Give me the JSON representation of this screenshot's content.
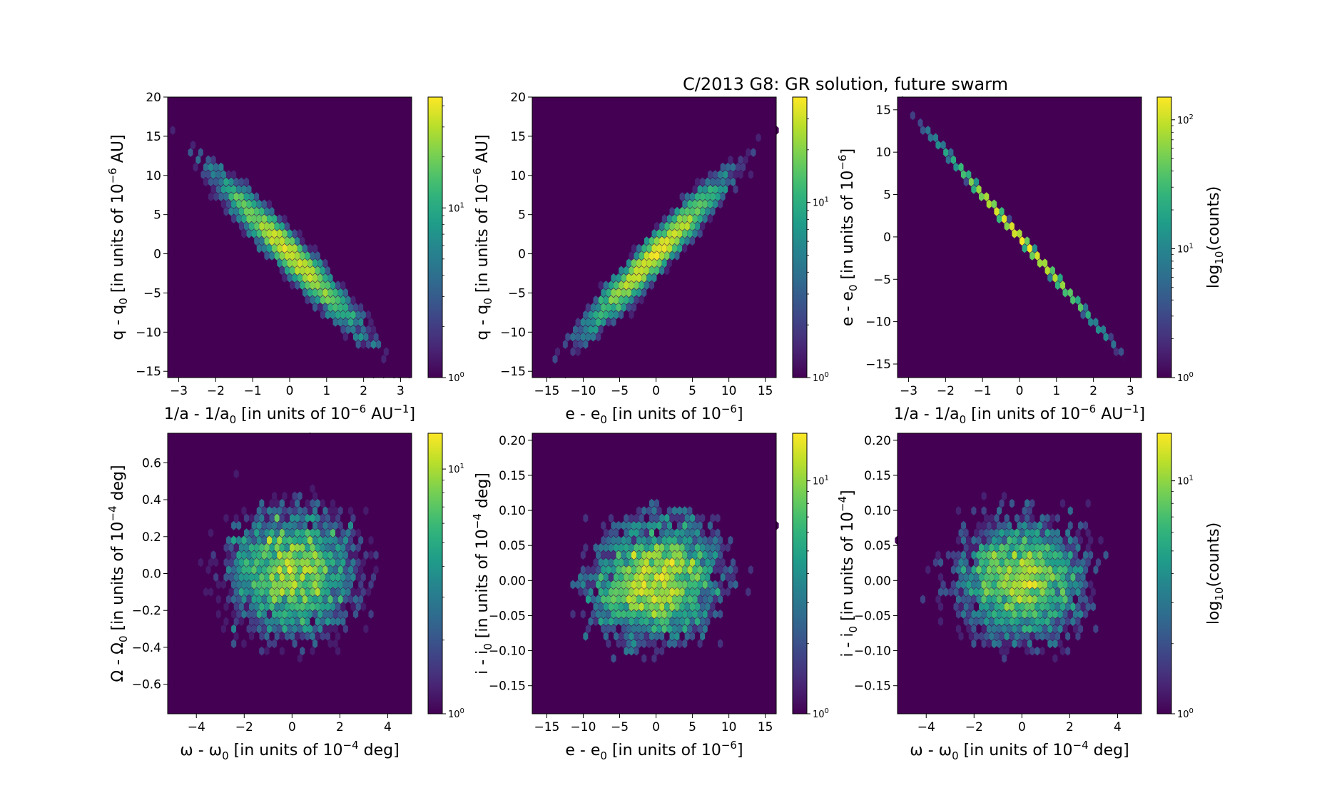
{
  "figure": {
    "title": "C/2013 G8:  GR solution, future swarm",
    "colormap": "viridis",
    "background_color": "#440154",
    "colorbar_log_label": "counts"
  },
  "chart_data": [
    {
      "type": "hexbin",
      "id": "a",
      "xlabel": "1/a - 1/a0 [in units of 10^-6 AU^-1]",
      "ylabel": "q - q0 [in units of 10^-6 AU]",
      "xlim": [
        -3.3,
        3.3
      ],
      "ylim": [
        -15.8,
        20
      ],
      "xticks": [
        -3,
        -2,
        -1,
        0,
        1,
        2,
        3
      ],
      "yticks": [
        -15,
        -10,
        -5,
        0,
        5,
        10,
        15,
        20
      ],
      "colorbar": {
        "min": 1,
        "max": 45,
        "ticks": [
          "10^0",
          "10^1"
        ],
        "label": ""
      },
      "distribution": {
        "x_center": 0,
        "x_sigma": 1.0,
        "y_slope": -4.9,
        "y_sigma": 1.4,
        "peak_counts": 40,
        "n_points": 5000
      }
    },
    {
      "type": "hexbin",
      "id": "b",
      "xlabel": "e - e0 [in units of 10^-6]",
      "ylabel": "q - q0 [in units of 10^-6 AU]",
      "xlim": [
        -17,
        16.5
      ],
      "ylim": [
        -15.8,
        20
      ],
      "xticks": [
        -15,
        -10,
        -5,
        0,
        5,
        10,
        15
      ],
      "yticks": [
        -15,
        -10,
        -5,
        0,
        5,
        10,
        15,
        20
      ],
      "colorbar": {
        "min": 1,
        "max": 40,
        "ticks": [
          "10^0",
          "10^1"
        ],
        "label": ""
      },
      "distribution": {
        "x_center": 0,
        "x_sigma": 5.0,
        "y_slope": 0.98,
        "y_sigma": 1.4,
        "peak_counts": 38,
        "n_points": 5000
      }
    },
    {
      "type": "hexbin",
      "id": "c",
      "xlabel": "1/a - 1/a0 [in units of 10^-6 AU^-1]",
      "ylabel": "e - e0 [in units of 10^-6]",
      "xlim": [
        -3.3,
        3.3
      ],
      "ylim": [
        -16.6,
        16.5
      ],
      "xticks": [
        -3,
        -2,
        -1,
        0,
        1,
        2,
        3
      ],
      "yticks": [
        -15,
        -10,
        -5,
        0,
        5,
        10,
        15
      ],
      "colorbar": {
        "min": 1,
        "max": 150,
        "ticks": [
          "10^0",
          "10^1",
          "10^2"
        ],
        "label": "log10(counts)"
      },
      "distribution": {
        "x_center": 0,
        "x_sigma": 1.0,
        "y_slope": -5.0,
        "y_sigma": 0,
        "peak_counts": 140,
        "n_points": 5000
      }
    },
    {
      "type": "hexbin",
      "id": "d",
      "xlabel": "ω - ω0 [in units of 10^-4 deg]",
      "ylabel": "Ω - Ω0 [in units of 10^-4 deg]",
      "xlim": [
        -5.2,
        5.0
      ],
      "ylim": [
        -0.76,
        0.76
      ],
      "xticks": [
        -4,
        -2,
        0,
        2,
        4
      ],
      "yticks": [
        -0.6,
        -0.4,
        -0.2,
        0.0,
        0.2,
        0.4,
        0.6
      ],
      "colorbar": {
        "min": 1,
        "max": 14,
        "ticks": [
          "10^0",
          "10^1"
        ],
        "label": ""
      },
      "distribution": {
        "x_center": 0,
        "x_sigma": 1.5,
        "y_slope": 0,
        "y_sigma": 0.2,
        "peak_counts": 13,
        "n_points": 5000
      }
    },
    {
      "type": "hexbin",
      "id": "e",
      "xlabel": "e - e0 [in units of 10^-6]",
      "ylabel": "i - i0 [in units of 10^-4 deg]",
      "xlim": [
        -17,
        16.5
      ],
      "ylim": [
        -0.19,
        0.21
      ],
      "xticks": [
        -15,
        -10,
        -5,
        0,
        5,
        10,
        15
      ],
      "yticks": [
        -0.15,
        -0.1,
        -0.05,
        0.0,
        0.05,
        0.1,
        0.15,
        0.2
      ],
      "colorbar": {
        "min": 1,
        "max": 16,
        "ticks": [
          "10^0",
          "10^1"
        ],
        "label": ""
      },
      "distribution": {
        "x_center": 0,
        "x_sigma": 5.0,
        "y_slope": 0.0012,
        "y_sigma": 0.048,
        "peak_counts": 15,
        "n_points": 5000
      }
    },
    {
      "type": "hexbin",
      "id": "f",
      "xlabel": "ω - ω0 [in units of 10^-4 deg]",
      "ylabel": "i - i0 [in units of 10^-4]",
      "xlim": [
        -5.2,
        5.0
      ],
      "ylim": [
        -0.19,
        0.21
      ],
      "xticks": [
        -4,
        -2,
        0,
        2,
        4
      ],
      "yticks": [
        -0.15,
        -0.1,
        -0.05,
        0.0,
        0.05,
        0.1,
        0.15,
        0.2
      ],
      "colorbar": {
        "min": 1,
        "max": 16,
        "ticks": [
          "10^0",
          "10^1"
        ],
        "label": "log10(counts)"
      },
      "distribution": {
        "x_center": 0,
        "x_sigma": 1.5,
        "y_slope": 0,
        "y_sigma": 0.048,
        "peak_counts": 15,
        "n_points": 5000
      }
    }
  ]
}
